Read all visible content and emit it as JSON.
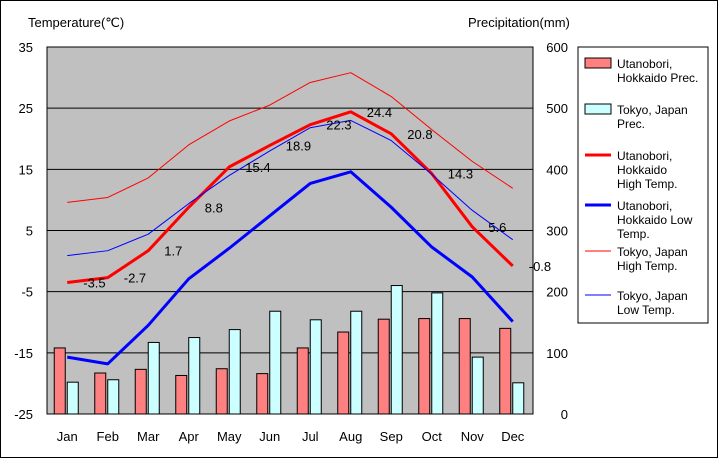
{
  "chart_data": {
    "type": "bar+line",
    "left_axis_title": "Temperature(℃)",
    "right_axis_title": "Precipitation(mm)",
    "left_ylim": [
      -25,
      35
    ],
    "left_yticks": [
      "35",
      "25",
      "15",
      "5",
      "-5",
      "-15",
      "-25"
    ],
    "left_ytick_values": [
      35,
      25,
      15,
      5,
      -5,
      -15,
      -25
    ],
    "right_ylim": [
      0,
      600
    ],
    "right_yticks": [
      "600",
      "500",
      "400",
      "300",
      "200",
      "100",
      "0"
    ],
    "right_ytick_values": [
      600,
      500,
      400,
      300,
      200,
      100,
      0
    ],
    "categories": [
      "Jan",
      "Feb",
      "Mar",
      "Apr",
      "May",
      "Jun",
      "Jul",
      "Aug",
      "Sep",
      "Oct",
      "Nov",
      "Dec"
    ],
    "grid": "horizontal",
    "plot_background": "#c0c0c0",
    "bar_series": [
      {
        "name": "Utanobori, Hokkaido Prec.",
        "legend_lines": [
          "Utanobori,",
          "Hokkaido Prec."
        ],
        "color": "#ff8080",
        "values": [
          108,
          67,
          73,
          63,
          74,
          66,
          108,
          134,
          155,
          156,
          156,
          140
        ]
      },
      {
        "name": "Tokyo, Japan Prec.",
        "legend_lines": [
          "Tokyo, Japan",
          "Prec."
        ],
        "color": "#ccffff",
        "values": [
          52,
          56,
          117,
          125,
          138,
          168,
          154,
          168,
          210,
          198,
          93,
          51
        ]
      }
    ],
    "line_series": [
      {
        "name": "Utanobori, Hokkaido High Temp.",
        "legend_lines": [
          "Utanobori,",
          "Hokkaido",
          "High Temp."
        ],
        "color": "#ff0000",
        "width": 3,
        "values": [
          -3.5,
          -2.7,
          1.7,
          8.8,
          15.4,
          18.9,
          22.3,
          24.4,
          20.8,
          14.3,
          5.6,
          -0.8
        ]
      },
      {
        "name": "Utanobori, Hokkaido Low Temp.",
        "legend_lines": [
          "Utanobori,",
          "Hokkaido Low",
          "Temp."
        ],
        "color": "#0000ff",
        "width": 3,
        "values": [
          -15.7,
          -16.8,
          -10.5,
          -2.9,
          2.1,
          7.4,
          12.7,
          14.6,
          8.8,
          2.3,
          -2.6,
          -9.9
        ]
      },
      {
        "name": "Tokyo, Japan High Temp.",
        "legend_lines": [
          "Tokyo, Japan",
          "High Temp."
        ],
        "color": "#ff0000",
        "width": 1,
        "values": [
          9.6,
          10.4,
          13.6,
          19.0,
          22.9,
          25.5,
          29.2,
          30.8,
          26.9,
          21.5,
          16.3,
          11.9
        ]
      },
      {
        "name": "Tokyo, Japan Low Temp.",
        "legend_lines": [
          "Tokyo, Japan",
          "Low Temp."
        ],
        "color": "#0000ff",
        "width": 1,
        "values": [
          0.9,
          1.7,
          4.4,
          9.4,
          14.0,
          18.0,
          21.8,
          23.0,
          19.7,
          14.2,
          8.3,
          3.5
        ]
      }
    ],
    "data_labels": {
      "series": "Utanobori, Hokkaido High Temp.",
      "texts": [
        "-3.5",
        "-2.7",
        "1.7",
        "8.8",
        "15.4",
        "18.9",
        "22.3",
        "24.4",
        "20.8",
        "14.3",
        "5.6",
        "-0.8"
      ]
    },
    "legend_position": "right"
  }
}
